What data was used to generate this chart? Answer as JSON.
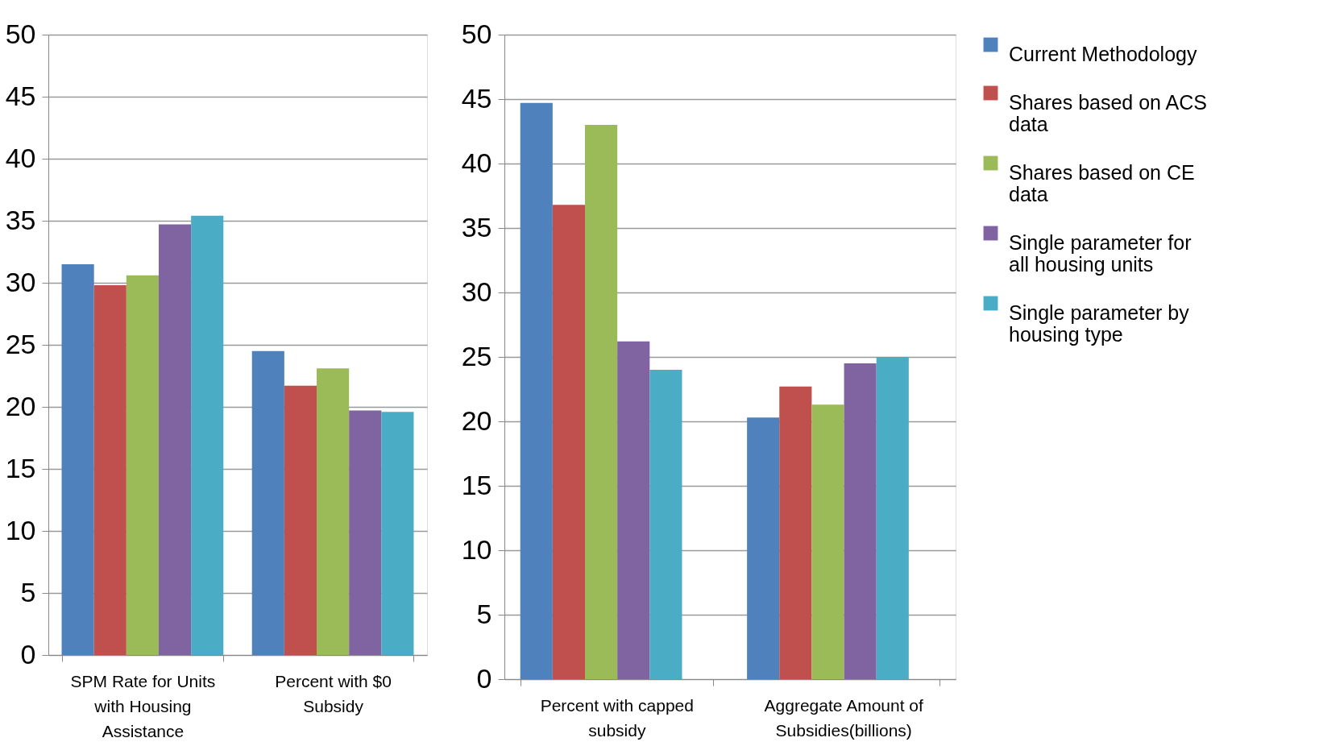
{
  "chart_data": [
    {
      "type": "bar",
      "categories": [
        "SPM Rate for Units with Housing Assistance",
        "Percent with $0 Subsidy"
      ],
      "ylim": [
        0,
        50
      ],
      "yticks": [
        0,
        5,
        10,
        15,
        20,
        25,
        30,
        35,
        40,
        45,
        50
      ],
      "grid": "y",
      "legend": "right",
      "series": [
        {
          "name": "Current Methodology",
          "color": "#4f81bd",
          "values": [
            31.5,
            24.5
          ]
        },
        {
          "name": "Shares based on ACS data",
          "color": "#c0504d",
          "values": [
            29.8,
            21.7
          ]
        },
        {
          "name": "Shares based on CE data",
          "color": "#9bbb59",
          "values": [
            30.6,
            23.1
          ]
        },
        {
          "name": "Single parameter for all housing units",
          "color": "#8064a2",
          "values": [
            34.7,
            19.7
          ]
        },
        {
          "name": "Single parameter by housing type",
          "color": "#4bacc6",
          "values": [
            35.4,
            19.6
          ]
        }
      ]
    },
    {
      "type": "bar",
      "categories": [
        "Percent with capped subsidy",
        "Aggregate Amount of Subsidies(billions)"
      ],
      "ylim": [
        0,
        50
      ],
      "yticks": [
        0,
        5,
        10,
        15,
        20,
        25,
        30,
        35,
        40,
        45,
        50
      ],
      "grid": "y",
      "series": [
        {
          "color": "#4f81bd",
          "values": [
            44.7,
            20.3
          ]
        },
        {
          "color": "#c0504d",
          "values": [
            36.8,
            22.7
          ]
        },
        {
          "color": "#9bbb59",
          "values": [
            43.0,
            21.3
          ]
        },
        {
          "color": "#8064a2",
          "values": [
            26.2,
            24.5
          ]
        },
        {
          "color": "#4bacc6",
          "values": [
            24.0,
            25.0
          ]
        }
      ]
    }
  ]
}
